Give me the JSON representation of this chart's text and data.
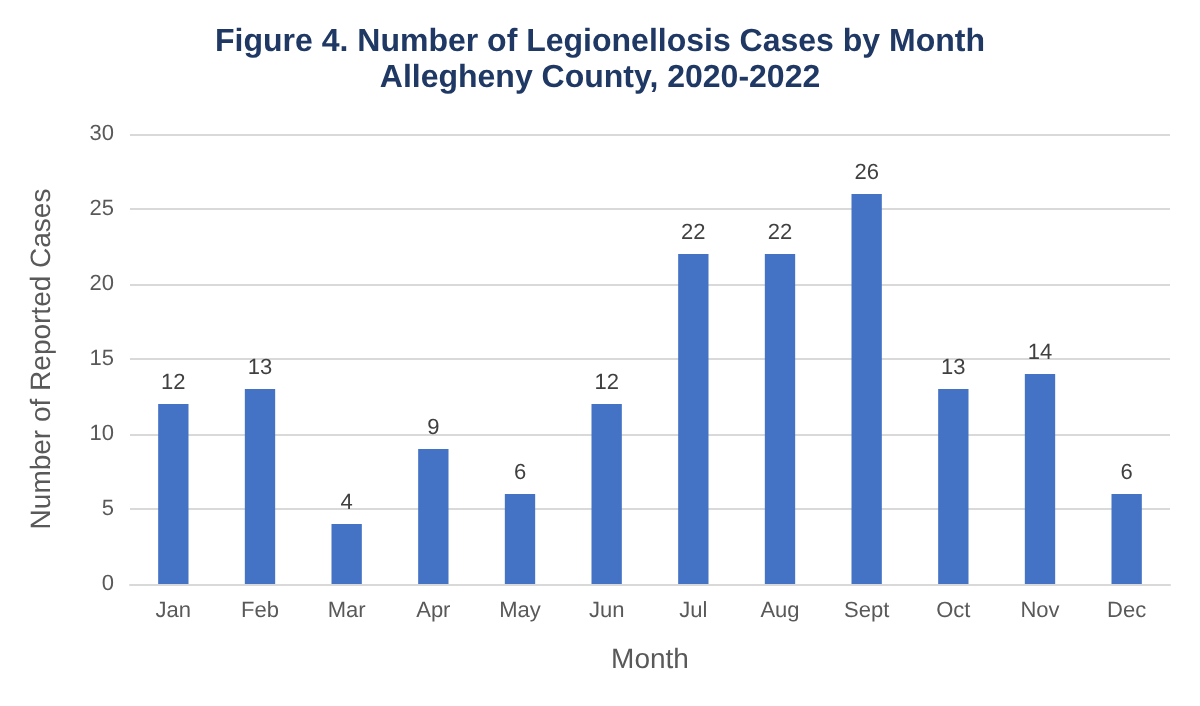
{
  "chart_data": {
    "type": "bar",
    "title": "Figure 4. Number of Legionellosis Cases by Month",
    "subtitle": "Allegheny County, 2020-2022",
    "xlabel": "Month",
    "ylabel": "Number of Reported Cases",
    "categories": [
      "Jan",
      "Feb",
      "Mar",
      "Apr",
      "May",
      "Jun",
      "Jul",
      "Aug",
      "Sept",
      "Oct",
      "Nov",
      "Dec"
    ],
    "values": [
      12,
      13,
      4,
      9,
      6,
      12,
      22,
      22,
      26,
      13,
      14,
      6
    ],
    "color": "#4472c4",
    "ylim": [
      0,
      30
    ],
    "yticks": [
      0,
      5,
      10,
      15,
      20,
      25,
      30
    ],
    "grid": "y",
    "data_labels": true
  }
}
